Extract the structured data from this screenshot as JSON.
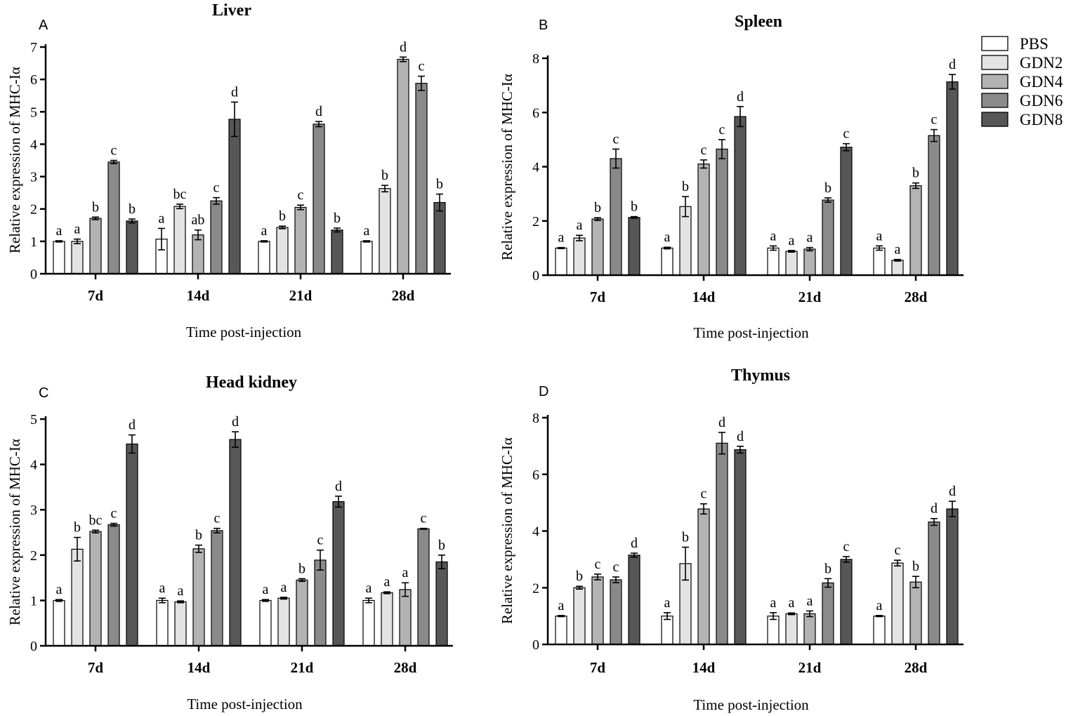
{
  "figure": {
    "legend": [
      {
        "name": "PBS",
        "color": "#ffffff"
      },
      {
        "name": "GDN2",
        "color": "#e3e3e3"
      },
      {
        "name": "GDN4",
        "color": "#b3b3b3"
      },
      {
        "name": "GDN6",
        "color": "#8a8a8a"
      },
      {
        "name": "GDN8",
        "color": "#575757"
      }
    ]
  },
  "chart_data": [
    {
      "panel": "A",
      "type": "bar",
      "title": "Liver",
      "xlabel": "Time post-injection",
      "ylabel": "Relative expression of MHC-Iα",
      "ylim": [
        0,
        7
      ],
      "yticks": [
        "0",
        "1",
        "2",
        "3",
        "4",
        "5",
        "6",
        "7"
      ],
      "categories": [
        "7d",
        "14d",
        "21d",
        "28d"
      ],
      "series": [
        {
          "name": "PBS",
          "values": [
            1.0,
            1.07,
            1.0,
            1.0
          ],
          "errors": [
            0.02,
            0.33,
            0.02,
            0.02
          ],
          "labels": [
            "a",
            "a",
            "a",
            "a"
          ]
        },
        {
          "name": "GDN2",
          "values": [
            1.0,
            2.08,
            1.43,
            2.63
          ],
          "errors": [
            0.07,
            0.07,
            0.04,
            0.1
          ],
          "labels": [
            "a",
            "bc",
            "b",
            "b"
          ]
        },
        {
          "name": "GDN4",
          "values": [
            1.71,
            1.2,
            2.05,
            6.62
          ],
          "errors": [
            0.04,
            0.15,
            0.07,
            0.07
          ],
          "labels": [
            "b",
            "ab",
            "c",
            "d"
          ]
        },
        {
          "name": "GDN6",
          "values": [
            3.45,
            2.25,
            4.62,
            5.88
          ],
          "errors": [
            0.05,
            0.1,
            0.08,
            0.22
          ],
          "labels": [
            "c",
            "c",
            "d",
            "c"
          ]
        },
        {
          "name": "GDN8",
          "values": [
            1.63,
            4.77,
            1.35,
            2.2
          ],
          "errors": [
            0.06,
            0.53,
            0.06,
            0.26
          ],
          "labels": [
            "b",
            "d",
            "b",
            "b"
          ]
        }
      ]
    },
    {
      "panel": "B",
      "type": "bar",
      "title": "Spleen",
      "xlabel": "Time post-injection",
      "ylabel": "Relative expression of MHC-Iα",
      "ylim": [
        0,
        8
      ],
      "yticks": [
        "0",
        "2",
        "4",
        "6",
        "8"
      ],
      "categories": [
        "7d",
        "14d",
        "21d",
        "28d"
      ],
      "series": [
        {
          "name": "PBS",
          "values": [
            1.0,
            1.0,
            1.0,
            1.0
          ],
          "errors": [
            0.02,
            0.03,
            0.08,
            0.08
          ],
          "labels": [
            "a",
            "a",
            "a",
            "a"
          ]
        },
        {
          "name": "GDN2",
          "values": [
            1.37,
            2.53,
            0.88,
            0.55
          ],
          "errors": [
            0.1,
            0.37,
            0.03,
            0.03
          ],
          "labels": [
            "a",
            "b",
            "a",
            "a"
          ]
        },
        {
          "name": "GDN4",
          "values": [
            2.07,
            4.1,
            0.96,
            3.3
          ],
          "errors": [
            0.05,
            0.15,
            0.06,
            0.1
          ],
          "labels": [
            "b",
            "c",
            "a",
            "b"
          ]
        },
        {
          "name": "GDN6",
          "values": [
            4.3,
            4.65,
            2.77,
            5.15
          ],
          "errors": [
            0.35,
            0.35,
            0.08,
            0.22
          ],
          "labels": [
            "c",
            "c",
            "b",
            "c"
          ]
        },
        {
          "name": "GDN8",
          "values": [
            2.13,
            5.85,
            4.72,
            7.13
          ],
          "errors": [
            0.03,
            0.37,
            0.13,
            0.27
          ],
          "labels": [
            "b",
            "d",
            "c",
            "d"
          ]
        }
      ]
    },
    {
      "panel": "C",
      "type": "bar",
      "title": "Head kidney",
      "xlabel": "Time post-injection",
      "ylabel": "Relative expression of MHC-Iα",
      "ylim": [
        0,
        5
      ],
      "yticks": [
        "0",
        "1",
        "2",
        "3",
        "4",
        "5"
      ],
      "categories": [
        "7d",
        "14d",
        "21d",
        "28d"
      ],
      "series": [
        {
          "name": "PBS",
          "values": [
            1.0,
            1.0,
            1.0,
            1.0
          ],
          "errors": [
            0.02,
            0.05,
            0.02,
            0.05
          ],
          "labels": [
            "a",
            "a",
            "a",
            "a"
          ]
        },
        {
          "name": "GDN2",
          "values": [
            2.13,
            0.97,
            1.05,
            1.17
          ],
          "errors": [
            0.26,
            0.02,
            0.02,
            0.02
          ],
          "labels": [
            "b",
            "a",
            "a",
            "a"
          ]
        },
        {
          "name": "GDN4",
          "values": [
            2.52,
            2.14,
            1.45,
            1.24
          ],
          "errors": [
            0.03,
            0.08,
            0.03,
            0.15
          ],
          "labels": [
            "bc",
            "b",
            "b",
            "a"
          ]
        },
        {
          "name": "GDN6",
          "values": [
            2.67,
            2.54,
            1.89,
            2.58
          ],
          "errors": [
            0.03,
            0.05,
            0.22,
            0.01
          ],
          "labels": [
            "c",
            "c",
            "c",
            "c"
          ]
        },
        {
          "name": "GDN8",
          "values": [
            4.45,
            4.55,
            3.18,
            1.85
          ],
          "errors": [
            0.2,
            0.17,
            0.12,
            0.15
          ],
          "labels": [
            "d",
            "d",
            "d",
            "b"
          ]
        }
      ]
    },
    {
      "panel": "D",
      "type": "bar",
      "title": "Thymus",
      "xlabel": "Time post-injection",
      "ylabel": "Relative expression of MHC-Iα",
      "ylim": [
        0,
        8
      ],
      "yticks": [
        "0",
        "2",
        "4",
        "6",
        "8"
      ],
      "categories": [
        "7d",
        "14d",
        "21d",
        "28d"
      ],
      "series": [
        {
          "name": "PBS",
          "values": [
            1.0,
            1.0,
            1.0,
            1.0
          ],
          "errors": [
            0.02,
            0.12,
            0.12,
            0.02
          ],
          "labels": [
            "a",
            "a",
            "a",
            "a"
          ]
        },
        {
          "name": "GDN2",
          "values": [
            2.0,
            2.85,
            1.08,
            2.87
          ],
          "errors": [
            0.05,
            0.58,
            0.03,
            0.1
          ],
          "labels": [
            "b",
            "b",
            "a",
            "c"
          ]
        },
        {
          "name": "GDN4",
          "values": [
            2.38,
            4.78,
            1.08,
            2.2
          ],
          "errors": [
            0.1,
            0.18,
            0.1,
            0.2
          ],
          "labels": [
            "c",
            "c",
            "a",
            "b"
          ]
        },
        {
          "name": "GDN6",
          "values": [
            2.28,
            7.1,
            2.17,
            4.32
          ],
          "errors": [
            0.1,
            0.38,
            0.15,
            0.12
          ],
          "labels": [
            "c",
            "d",
            "b",
            "d"
          ]
        },
        {
          "name": "GDN8",
          "values": [
            3.15,
            6.87,
            3.0,
            4.78
          ],
          "errors": [
            0.07,
            0.12,
            0.1,
            0.27
          ],
          "labels": [
            "d",
            "d",
            "c",
            "d"
          ]
        }
      ]
    }
  ]
}
